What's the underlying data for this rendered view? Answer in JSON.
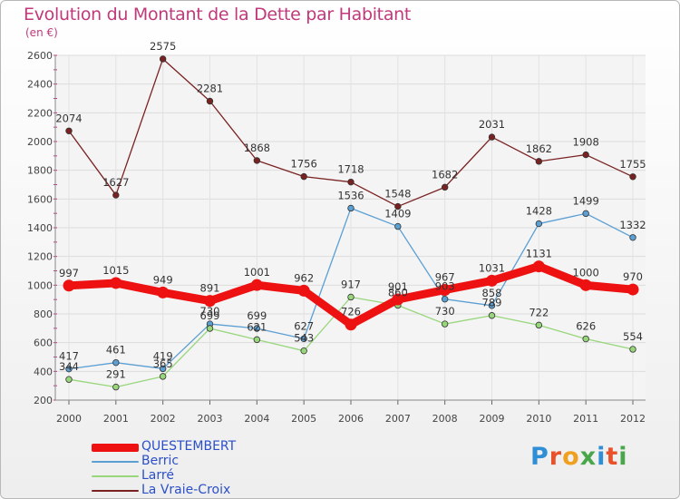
{
  "title": "Evolution du Montant de la Dette par Habitant",
  "unit": "(en €)",
  "logo": {
    "text": "Proxiti",
    "letter_colors": [
      "#2f8fd6",
      "#e8512a",
      "#f0a020",
      "#49a64b",
      "#2f8fd6",
      "#e8512a",
      "#49a64b"
    ]
  },
  "chart_data": {
    "type": "line",
    "title": "Evolution du Montant de la Dette par Habitant",
    "xlabel": "",
    "ylabel": "(en €)",
    "x": [
      "2000",
      "2001",
      "2002",
      "2003",
      "2004",
      "2005",
      "2006",
      "2007",
      "2008",
      "2009",
      "2010",
      "2011",
      "2012"
    ],
    "ylim": [
      200,
      2600
    ],
    "yticks": [
      "200",
      "400",
      "600",
      "800",
      "1000",
      "1200",
      "1400",
      "1600",
      "1800",
      "2000",
      "2200",
      "2400",
      "2600"
    ],
    "grid": true,
    "legend_position": "bottom-left",
    "series": [
      {
        "name": "La Vraie-Croix",
        "color": "#7a2222",
        "width": "thin",
        "values": [
          2074,
          1627,
          2575,
          2281,
          1868,
          1756,
          1718,
          1548,
          1682,
          2031,
          1862,
          1908,
          1755
        ]
      },
      {
        "name": "Berric",
        "color": "#5b9fd3",
        "width": "thin",
        "values": [
          417,
          461,
          419,
          730,
          699,
          627,
          1536,
          1409,
          903,
          858,
          1428,
          1499,
          1332
        ]
      },
      {
        "name": "Larré",
        "color": "#98d67c",
        "width": "thin",
        "values": [
          344,
          291,
          365,
          699,
          621,
          543,
          917,
          860,
          730,
          789,
          722,
          626,
          554
        ]
      },
      {
        "name": "QUESTEMBERT",
        "color": "#ee1111",
        "width": "thick",
        "values": [
          997,
          1015,
          949,
          891,
          1001,
          962,
          726,
          901,
          967,
          1031,
          1131,
          1000,
          970
        ]
      }
    ],
    "legend_order": [
      "QUESTEMBERT",
      "Berric",
      "Larré",
      "La Vraie-Croix"
    ]
  }
}
